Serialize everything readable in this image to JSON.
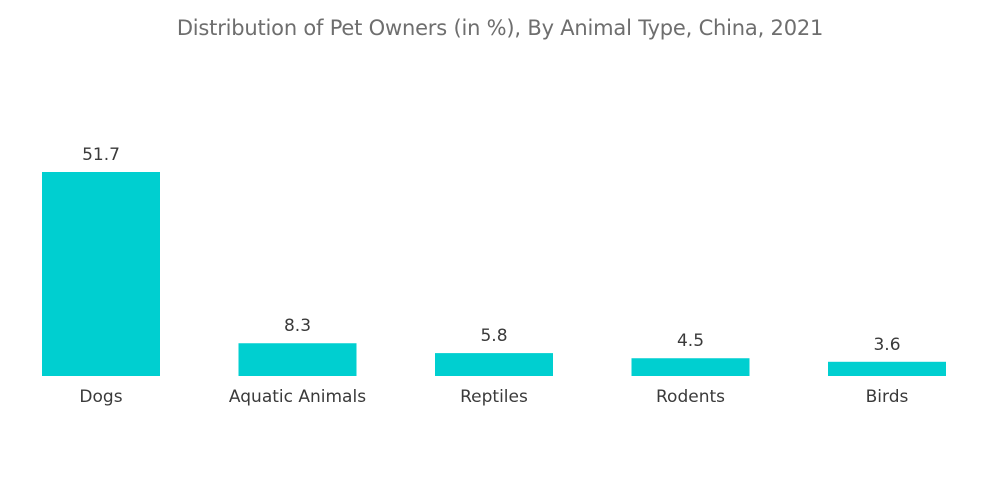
{
  "chart_data": {
    "type": "bar",
    "title": "Distribution of Pet Owners (in %), By Animal Type, China, 2021",
    "categories": [
      "Dogs",
      "Aquatic Animals",
      "Reptiles",
      "Rodents",
      "Birds"
    ],
    "values": [
      51.7,
      8.3,
      5.8,
      4.5,
      3.6
    ],
    "value_labels": [
      "51.7",
      "8.3",
      "5.8",
      "4.5",
      "3.6"
    ],
    "xlabel": "",
    "ylabel": "",
    "ylim": [
      0,
      51.7
    ],
    "grid": false,
    "bar_color": "#00cfd0"
  }
}
